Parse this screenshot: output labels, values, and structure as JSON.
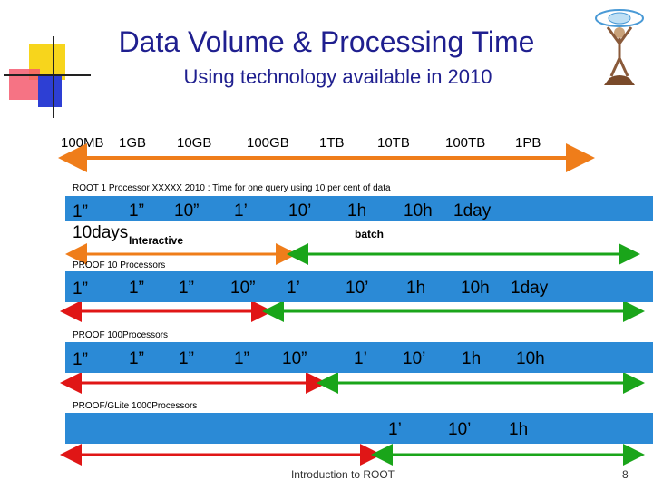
{
  "title": "Data Volume & Processing Time",
  "subtitle": "Using technology available in 2010",
  "scale": [
    "100MB",
    "1GB",
    "10GB",
    "100GB",
    "1TB",
    "10TB",
    "100TB",
    "1PB"
  ],
  "root": {
    "label": "ROOT 1 Processor  XXXXX  2010  : Time for one query using 10 per cent of data",
    "cells": [
      "1”",
      "1”",
      "10”",
      "1’",
      "10’",
      "1h",
      "10h",
      "1day"
    ],
    "extra": "10days",
    "interactive": "Interactive",
    "batch": "batch"
  },
  "proof10": {
    "label": "PROOF 10 Processors",
    "cells": [
      "1”",
      "1”",
      "1”",
      "10”",
      "1’",
      "10’",
      "1h",
      "10h",
      "1day"
    ]
  },
  "proof100": {
    "label": "PROOF 100Processors",
    "cells": [
      "1”",
      "1”",
      "1”",
      "1”",
      "10”",
      "1’",
      "10’",
      "1h",
      "10h"
    ]
  },
  "proofglite": {
    "label": "PROOF/GLite 1000Processors",
    "cells": [
      "1’",
      "10’",
      "1h"
    ]
  },
  "footer": "Introduction to ROOT",
  "page_number": "8",
  "colors": {
    "title": "#1f1f8f",
    "band": "#2b8ad6",
    "arrow_orange": "#ef7d1a",
    "arrow_green": "#1aa51a",
    "arrow_red": "#e01616"
  }
}
